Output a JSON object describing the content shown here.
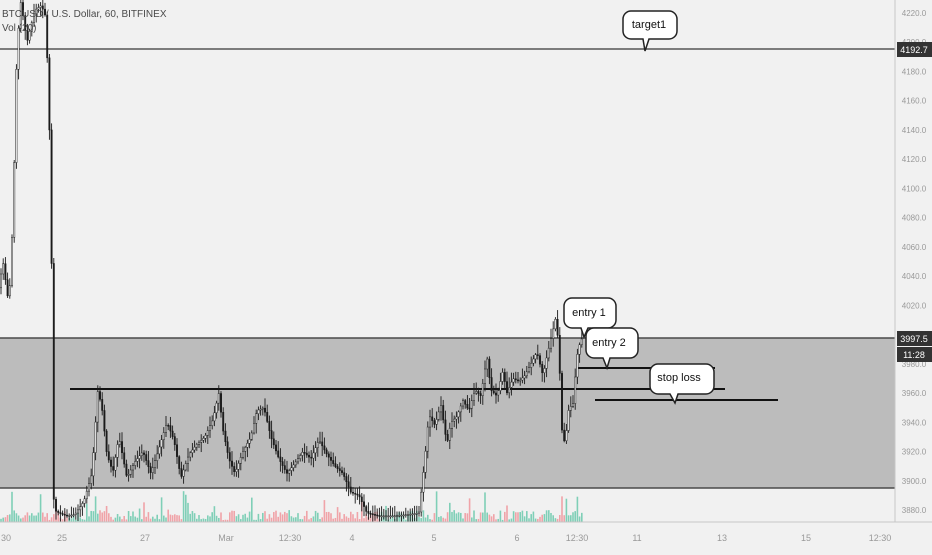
{
  "header": {
    "symbol_line": "BTCUSD / U.S. Dollar, 60, BITFINEX",
    "volume_line": "Vol (20)"
  },
  "chart_data": {
    "type": "candlestick",
    "symbol": "BTCUSD",
    "interval": "60",
    "exchange": "BITFINEX",
    "ylim": [
      3870,
      4228
    ],
    "y_ticks": [
      3880,
      3900,
      3920,
      3940,
      3960,
      3980,
      4000,
      4020,
      4040,
      4060,
      4080,
      4100,
      4120,
      4140,
      4160,
      4180,
      4200,
      4220
    ],
    "x_ticks": [
      "30",
      "25",
      "27",
      "Mar",
      "12:30",
      "4",
      "5",
      "6",
      "12:30",
      "11",
      "13",
      "15",
      "12:30"
    ],
    "price_points": [
      [
        0,
        4032
      ],
      [
        4,
        4050
      ],
      [
        10,
        4020
      ],
      [
        14,
        4080
      ],
      [
        18,
        4196
      ],
      [
        22,
        4228
      ],
      [
        28,
        4200
      ],
      [
        36,
        4222
      ],
      [
        42,
        4225
      ],
      [
        46,
        4220
      ],
      [
        49,
        4180
      ],
      [
        52,
        4100
      ],
      [
        55,
        3880
      ],
      [
        60,
        3878
      ],
      [
        68,
        3876
      ],
      [
        76,
        3877
      ],
      [
        85,
        3886
      ],
      [
        93,
        3905
      ],
      [
        99,
        3962
      ],
      [
        103,
        3950
      ],
      [
        108,
        3918
      ],
      [
        114,
        3906
      ],
      [
        120,
        3930
      ],
      [
        128,
        3902
      ],
      [
        136,
        3913
      ],
      [
        144,
        3920
      ],
      [
        152,
        3905
      ],
      [
        160,
        3922
      ],
      [
        168,
        3940
      ],
      [
        175,
        3928
      ],
      [
        182,
        3902
      ],
      [
        190,
        3918
      ],
      [
        198,
        3925
      ],
      [
        206,
        3930
      ],
      [
        214,
        3942
      ],
      [
        220,
        3960
      ],
      [
        224,
        3935
      ],
      [
        230,
        3915
      ],
      [
        236,
        3905
      ],
      [
        244,
        3920
      ],
      [
        252,
        3930
      ],
      [
        258,
        3948
      ],
      [
        265,
        3950
      ],
      [
        272,
        3930
      ],
      [
        280,
        3915
      ],
      [
        288,
        3905
      ],
      [
        296,
        3912
      ],
      [
        304,
        3920
      ],
      [
        312,
        3915
      ],
      [
        320,
        3928
      ],
      [
        328,
        3918
      ],
      [
        336,
        3910
      ],
      [
        344,
        3905
      ],
      [
        352,
        3892
      ],
      [
        360,
        3890
      ],
      [
        368,
        3878
      ],
      [
        380,
        3876
      ],
      [
        395,
        3876
      ],
      [
        410,
        3877
      ],
      [
        420,
        3878
      ],
      [
        426,
        3915
      ],
      [
        430,
        3945
      ],
      [
        436,
        3938
      ],
      [
        442,
        3952
      ],
      [
        448,
        3925
      ],
      [
        452,
        3940
      ],
      [
        458,
        3944
      ],
      [
        464,
        3955
      ],
      [
        470,
        3948
      ],
      [
        476,
        3962
      ],
      [
        482,
        3958
      ],
      [
        488,
        3985
      ],
      [
        492,
        3962
      ],
      [
        498,
        3958
      ],
      [
        504,
        3975
      ],
      [
        508,
        3960
      ],
      [
        514,
        3970
      ],
      [
        520,
        3968
      ],
      [
        526,
        3972
      ],
      [
        532,
        3980
      ],
      [
        538,
        3988
      ],
      [
        544,
        3972
      ],
      [
        548,
        3985
      ],
      [
        553,
        4000
      ],
      [
        557,
        4012
      ],
      [
        560,
        3990
      ],
      [
        563,
        3935
      ],
      [
        566,
        3925
      ],
      [
        570,
        3950
      ],
      [
        574,
        3952
      ],
      [
        578,
        3985
      ],
      [
        582,
        3997
      ]
    ],
    "horizontal_lines": [
      4192.7,
      3997.5,
      3963,
      3962,
      3957,
      3952,
      3898
    ],
    "price_label": "4192.7",
    "last_price": "3997.5",
    "countdown": "11:28",
    "annotations": [
      "target1",
      "entry 1",
      "entry 2",
      "stop loss"
    ]
  }
}
